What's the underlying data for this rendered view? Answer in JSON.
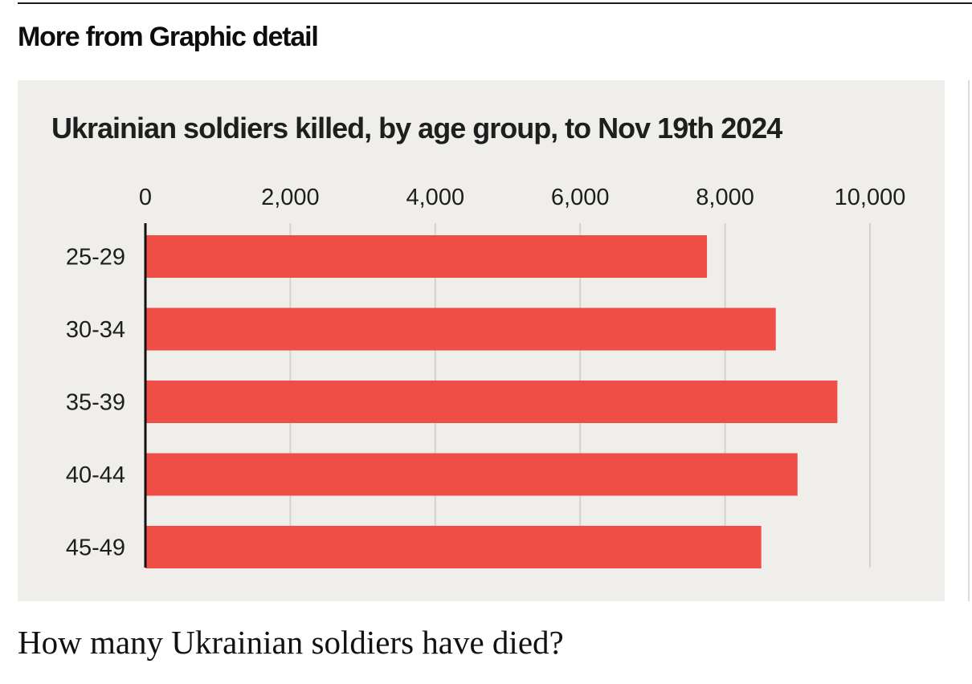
{
  "section": {
    "heading": "More from Graphic detail"
  },
  "article": {
    "title": "How many Ukrainian soldiers have died?"
  },
  "colors": {
    "bar": "#ef4e47",
    "background": "#efeeea",
    "gridline": "#d2d2cf",
    "axis": "#111111"
  },
  "chart_data": {
    "type": "bar",
    "orientation": "horizontal",
    "title": "Ukrainian soldiers killed, by age group, to Nov 19th 2024",
    "xlabel": "",
    "ylabel": "",
    "categories": [
      "25-29",
      "30-34",
      "35-39",
      "40-44",
      "45-49"
    ],
    "values": [
      7750,
      8700,
      9550,
      9000,
      8500
    ],
    "xlim": [
      0,
      10000
    ],
    "ticks": [
      0,
      2000,
      4000,
      6000,
      8000,
      10000
    ],
    "tick_labels": [
      "0",
      "2,000",
      "4,000",
      "6,000",
      "8,000",
      "10,000"
    ],
    "grid": true,
    "tick_position": "top"
  }
}
